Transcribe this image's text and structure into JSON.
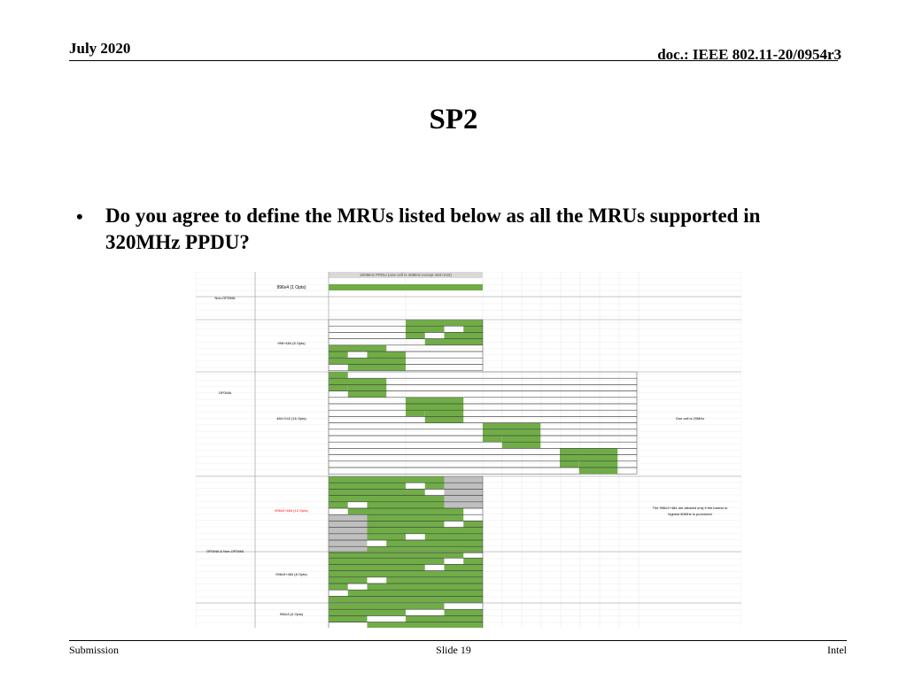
{
  "header": {
    "date": "July 2020",
    "doc": "doc.: IEEE 802.11-20/0954r3"
  },
  "slide": {
    "title": "SP2",
    "bullet": "Do you agree to define the MRUs listed below as all the MRUs supported in 320MHz PPDU?"
  },
  "figure": {
    "top_label": "320MHz PPDU (one cell is 40MHz except 484+242)",
    "row_labels": {
      "r996x4": "996x4 (1 Opts)",
      "r996_484": "996+484 (8 Opts)",
      "r484_242": "484+242 (16 Opts)",
      "r996x2_484": "996x2+484 (12 Opts)",
      "r996x3_484": "996x3+484 (8 Opts)",
      "r996x3": "996x3 (4 Opts)"
    },
    "group_labels": {
      "non_ofdma": "Non-OFDMA",
      "ofdma": "OFDMA",
      "both": "OFDMA & Non-OFDMA"
    },
    "notes": {
      "cell20": "One cell is 20MHz",
      "punct_line1": "The 996x2+484 are allowed only if the lowest or",
      "punct_line2": "highest 80MHz is punctured"
    },
    "colors": {
      "green": "#70ad47",
      "gray": "#bfbfbf",
      "red": "#ff0000"
    }
  },
  "footer": {
    "left": "Submission",
    "center": "Slide 19",
    "right": "Intel"
  }
}
